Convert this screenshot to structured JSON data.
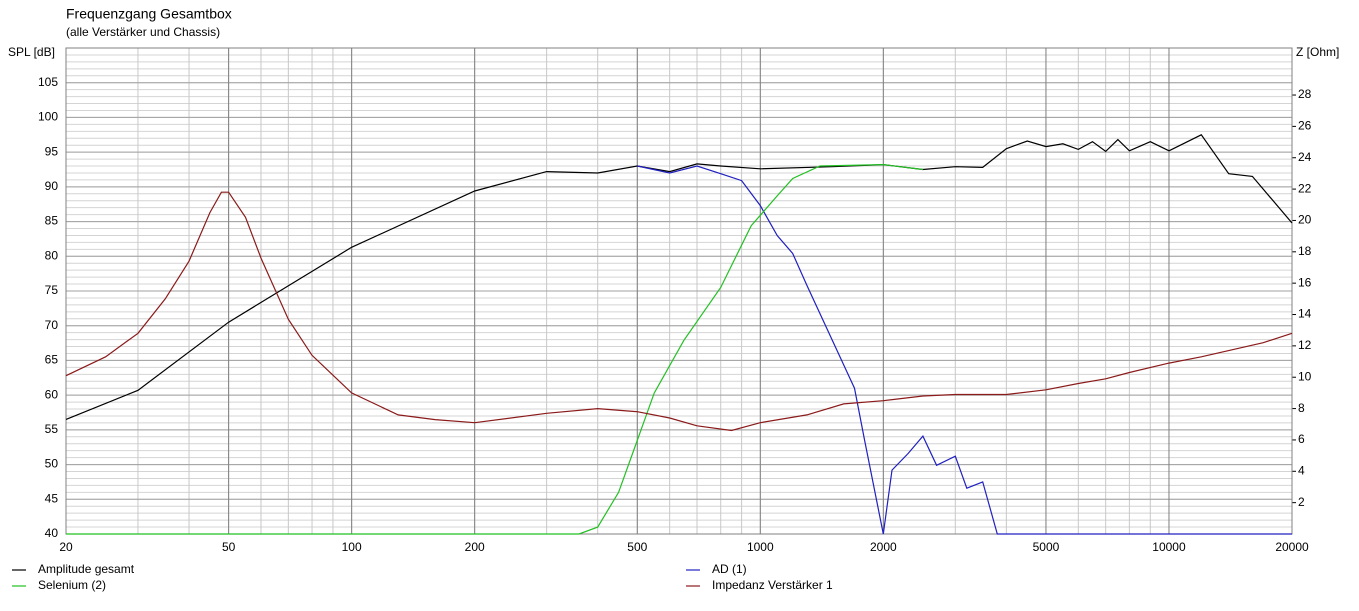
{
  "chart_data": {
    "type": "line",
    "title": "Frequenzgang Gesamtbox",
    "subtitle": "(alle Verstärker und Chassis)",
    "y_label": "SPL [dB]",
    "y2_label": "Z [Ohm]",
    "xscale": "log",
    "xlim": [
      20,
      20000
    ],
    "xticks": [
      20,
      50,
      100,
      200,
      500,
      1000,
      2000,
      5000,
      10000,
      20000
    ],
    "ylim": [
      40,
      110
    ],
    "yticks": [
      40,
      45,
      50,
      55,
      60,
      65,
      70,
      75,
      80,
      85,
      90,
      95,
      100,
      105
    ],
    "y2lim": [
      0,
      31
    ],
    "y2ticks": [
      2,
      4,
      6,
      8,
      10,
      12,
      14,
      16,
      18,
      20,
      22,
      24,
      26,
      28
    ],
    "grid": true,
    "legend": "bottom",
    "series": [
      {
        "name": "Amplitude gesamt",
        "color": "#000000",
        "x": [
          20,
          30,
          50,
          100,
          200,
          300,
          400,
          500,
          600,
          700,
          800,
          1000,
          1500,
          2000,
          2500,
          3000,
          3500,
          4000,
          4500,
          5000,
          5500,
          6000,
          6500,
          7000,
          7500,
          8000,
          9000,
          10000,
          12000,
          14000,
          16000,
          20000
        ],
        "values": [
          56.5,
          60.7,
          70.5,
          81.3,
          89.4,
          92.2,
          92,
          93,
          92.2,
          93.3,
          93,
          92.6,
          92.9,
          93.2,
          92.5,
          92.9,
          92.8,
          95.5,
          96.6,
          95.8,
          96.2,
          95.4,
          96.5,
          95.1,
          96.8,
          95.2,
          96.5,
          95.2,
          97.5,
          91.9,
          91.5,
          84.8
        ]
      },
      {
        "name": "AD (1)",
        "color": "#2020c0",
        "x": [
          500,
          600,
          700,
          800,
          900,
          1000,
          1100,
          1200,
          1300,
          1500,
          1700,
          1800,
          2000,
          2100,
          2300,
          2500,
          2700,
          3000,
          3200,
          3500,
          3800,
          20000
        ],
        "values": [
          93,
          92,
          93,
          91.9,
          90.9,
          87.3,
          83,
          80.4,
          75.8,
          67.9,
          61,
          53.5,
          40,
          49.2,
          51.6,
          54.1,
          49.9,
          51.2,
          46.6,
          47.5,
          40,
          40
        ]
      },
      {
        "name": "Selenium (2)",
        "color": "#22c022",
        "x": [
          20,
          360,
          400,
          450,
          500,
          550,
          650,
          800,
          950,
          1100,
          1200,
          1400,
          2000,
          2500
        ],
        "values": [
          40,
          40,
          41,
          46,
          53.5,
          60.3,
          67.9,
          75.5,
          84.4,
          88.7,
          91.2,
          93,
          93.2,
          92.5
        ]
      },
      {
        "name": "Impedanz Verstärker 1",
        "color": "#8b1a1a",
        "axis": "y2",
        "x": [
          20,
          25,
          30,
          35,
          40,
          45,
          48,
          50,
          55,
          60,
          70,
          80,
          100,
          130,
          160,
          200,
          300,
          400,
          500,
          600,
          700,
          850,
          1000,
          1300,
          1600,
          2000,
          2500,
          3000,
          4000,
          5000,
          6000,
          7000,
          8000,
          10000,
          12000,
          14000,
          17000,
          20000
        ],
        "values": [
          10.1,
          11.3,
          12.8,
          15,
          17.4,
          20.5,
          21.8,
          21.8,
          20.2,
          17.6,
          13.7,
          11.4,
          9,
          7.6,
          7.3,
          7.1,
          7.7,
          8,
          7.8,
          7.4,
          6.9,
          6.6,
          7.1,
          7.6,
          8.3,
          8.5,
          8.8,
          8.9,
          8.9,
          9.2,
          9.6,
          9.9,
          10.3,
          10.9,
          11.3,
          11.7,
          12.2,
          12.8
        ]
      }
    ]
  }
}
